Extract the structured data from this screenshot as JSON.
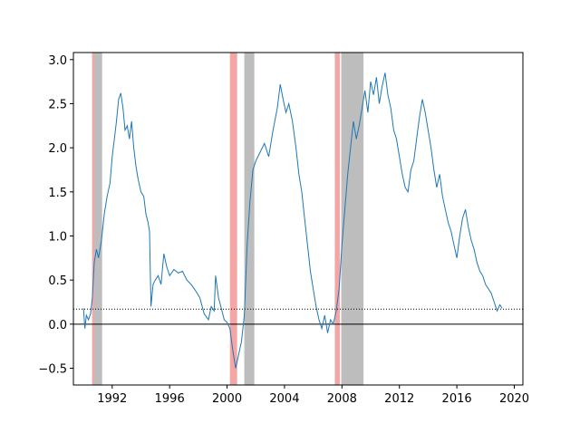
{
  "chart_data": {
    "type": "line",
    "title": "",
    "xlabel": "",
    "ylabel": "",
    "xlim": [
      1989.3,
      2020.6
    ],
    "ylim": [
      -0.69,
      3.08
    ],
    "x_ticks": [
      1992,
      1996,
      2000,
      2004,
      2008,
      2012,
      2016,
      2020
    ],
    "x_tick_labels": [
      "1992",
      "1996",
      "2000",
      "2004",
      "2008",
      "2012",
      "2016",
      "2020"
    ],
    "y_ticks": [
      -0.5,
      0.0,
      0.5,
      1.0,
      1.5,
      2.0,
      2.5,
      3.0
    ],
    "y_tick_labels": [
      "−0.5",
      "0.0",
      "0.5",
      "1.0",
      "1.5",
      "2.0",
      "2.5",
      "3.0"
    ],
    "grid": false,
    "legend": "none",
    "series": [
      {
        "color": "#1f77b4",
        "points": [
          [
            1990.0,
            0.18
          ],
          [
            1990.1,
            -0.05
          ],
          [
            1990.2,
            0.1
          ],
          [
            1990.35,
            0.05
          ],
          [
            1990.5,
            0.12
          ],
          [
            1990.62,
            0.3
          ],
          [
            1990.75,
            0.7
          ],
          [
            1990.9,
            0.85
          ],
          [
            1991.05,
            0.75
          ],
          [
            1991.25,
            0.95
          ],
          [
            1991.45,
            1.25
          ],
          [
            1991.65,
            1.45
          ],
          [
            1991.85,
            1.6
          ],
          [
            1992.0,
            1.9
          ],
          [
            1992.15,
            2.1
          ],
          [
            1992.3,
            2.3
          ],
          [
            1992.45,
            2.55
          ],
          [
            1992.6,
            2.62
          ],
          [
            1992.75,
            2.45
          ],
          [
            1992.9,
            2.2
          ],
          [
            1993.05,
            2.25
          ],
          [
            1993.2,
            2.1
          ],
          [
            1993.35,
            2.3
          ],
          [
            1993.5,
            2.0
          ],
          [
            1993.65,
            1.8
          ],
          [
            1993.8,
            1.65
          ],
          [
            1994.0,
            1.5
          ],
          [
            1994.2,
            1.45
          ],
          [
            1994.35,
            1.25
          ],
          [
            1994.5,
            1.15
          ],
          [
            1994.6,
            1.05
          ],
          [
            1994.7,
            0.2
          ],
          [
            1994.85,
            0.45
          ],
          [
            1995.0,
            0.5
          ],
          [
            1995.2,
            0.55
          ],
          [
            1995.4,
            0.45
          ],
          [
            1995.6,
            0.8
          ],
          [
            1995.8,
            0.65
          ],
          [
            1996.0,
            0.55
          ],
          [
            1996.3,
            0.62
          ],
          [
            1996.6,
            0.58
          ],
          [
            1996.9,
            0.6
          ],
          [
            1997.2,
            0.5
          ],
          [
            1997.5,
            0.45
          ],
          [
            1997.8,
            0.38
          ],
          [
            1998.1,
            0.3
          ],
          [
            1998.4,
            0.12
          ],
          [
            1998.7,
            0.05
          ],
          [
            1998.9,
            0.2
          ],
          [
            1999.1,
            0.15
          ],
          [
            1999.2,
            0.55
          ],
          [
            1999.4,
            0.3
          ],
          [
            1999.6,
            0.18
          ],
          [
            1999.8,
            0.05
          ],
          [
            2000.0,
            0.02
          ],
          [
            2000.2,
            -0.05
          ],
          [
            2000.4,
            -0.3
          ],
          [
            2000.6,
            -0.5
          ],
          [
            2000.8,
            -0.35
          ],
          [
            2001.0,
            -0.2
          ],
          [
            2001.2,
            0.1
          ],
          [
            2001.4,
            0.9
          ],
          [
            2001.6,
            1.4
          ],
          [
            2001.8,
            1.75
          ],
          [
            2002.0,
            1.85
          ],
          [
            2002.3,
            1.95
          ],
          [
            2002.6,
            2.05
          ],
          [
            2002.9,
            1.9
          ],
          [
            2003.2,
            2.2
          ],
          [
            2003.5,
            2.45
          ],
          [
            2003.7,
            2.72
          ],
          [
            2003.9,
            2.55
          ],
          [
            2004.1,
            2.4
          ],
          [
            2004.3,
            2.5
          ],
          [
            2004.55,
            2.3
          ],
          [
            2004.8,
            2.0
          ],
          [
            2005.0,
            1.7
          ],
          [
            2005.2,
            1.5
          ],
          [
            2005.4,
            1.2
          ],
          [
            2005.6,
            0.9
          ],
          [
            2005.8,
            0.6
          ],
          [
            2006.0,
            0.4
          ],
          [
            2006.2,
            0.2
          ],
          [
            2006.4,
            0.05
          ],
          [
            2006.6,
            -0.05
          ],
          [
            2006.8,
            0.1
          ],
          [
            2007.0,
            -0.1
          ],
          [
            2007.2,
            0.05
          ],
          [
            2007.4,
            0.0
          ],
          [
            2007.6,
            0.15
          ],
          [
            2007.8,
            0.4
          ],
          [
            2008.0,
            0.9
          ],
          [
            2008.2,
            1.3
          ],
          [
            2008.4,
            1.7
          ],
          [
            2008.6,
            2.0
          ],
          [
            2008.8,
            2.3
          ],
          [
            2009.0,
            2.1
          ],
          [
            2009.2,
            2.25
          ],
          [
            2009.4,
            2.45
          ],
          [
            2009.6,
            2.65
          ],
          [
            2009.8,
            2.4
          ],
          [
            2010.0,
            2.75
          ],
          [
            2010.2,
            2.6
          ],
          [
            2010.4,
            2.8
          ],
          [
            2010.6,
            2.5
          ],
          [
            2010.8,
            2.7
          ],
          [
            2011.0,
            2.85
          ],
          [
            2011.2,
            2.6
          ],
          [
            2011.4,
            2.45
          ],
          [
            2011.6,
            2.2
          ],
          [
            2011.8,
            2.1
          ],
          [
            2012.0,
            1.9
          ],
          [
            2012.2,
            1.7
          ],
          [
            2012.4,
            1.55
          ],
          [
            2012.6,
            1.5
          ],
          [
            2012.8,
            1.75
          ],
          [
            2013.0,
            1.85
          ],
          [
            2013.2,
            2.1
          ],
          [
            2013.4,
            2.35
          ],
          [
            2013.6,
            2.55
          ],
          [
            2013.8,
            2.4
          ],
          [
            2014.0,
            2.2
          ],
          [
            2014.2,
            2.0
          ],
          [
            2014.4,
            1.75
          ],
          [
            2014.6,
            1.55
          ],
          [
            2014.8,
            1.7
          ],
          [
            2015.0,
            1.45
          ],
          [
            2015.2,
            1.3
          ],
          [
            2015.4,
            1.15
          ],
          [
            2015.6,
            1.05
          ],
          [
            2015.8,
            0.9
          ],
          [
            2016.0,
            0.75
          ],
          [
            2016.2,
            1.0
          ],
          [
            2016.4,
            1.2
          ],
          [
            2016.6,
            1.3
          ],
          [
            2016.8,
            1.1
          ],
          [
            2017.0,
            0.95
          ],
          [
            2017.2,
            0.85
          ],
          [
            2017.4,
            0.7
          ],
          [
            2017.6,
            0.6
          ],
          [
            2017.8,
            0.55
          ],
          [
            2018.0,
            0.45
          ],
          [
            2018.2,
            0.4
          ],
          [
            2018.4,
            0.35
          ],
          [
            2018.6,
            0.25
          ],
          [
            2018.8,
            0.15
          ],
          [
            2019.0,
            0.22
          ],
          [
            2019.15,
            0.18
          ]
        ]
      }
    ],
    "hlines": [
      {
        "y": 0.0,
        "style": "solid",
        "color": "#000000"
      },
      {
        "y": 0.17,
        "style": "dotted",
        "color": "#000000"
      }
    ],
    "shaded_regions": [
      {
        "x0": 1990.6,
        "x1": 1990.75,
        "color": "#f4a6a6"
      },
      {
        "x0": 1990.75,
        "x1": 1991.3,
        "color": "#bdbdbd"
      },
      {
        "x0": 2000.2,
        "x1": 2000.7,
        "color": "#f4a6a6"
      },
      {
        "x0": 2001.2,
        "x1": 2001.9,
        "color": "#bdbdbd"
      },
      {
        "x0": 2007.5,
        "x1": 2007.85,
        "color": "#f4a6a6"
      },
      {
        "x0": 2007.95,
        "x1": 2009.5,
        "color": "#bdbdbd"
      }
    ]
  }
}
